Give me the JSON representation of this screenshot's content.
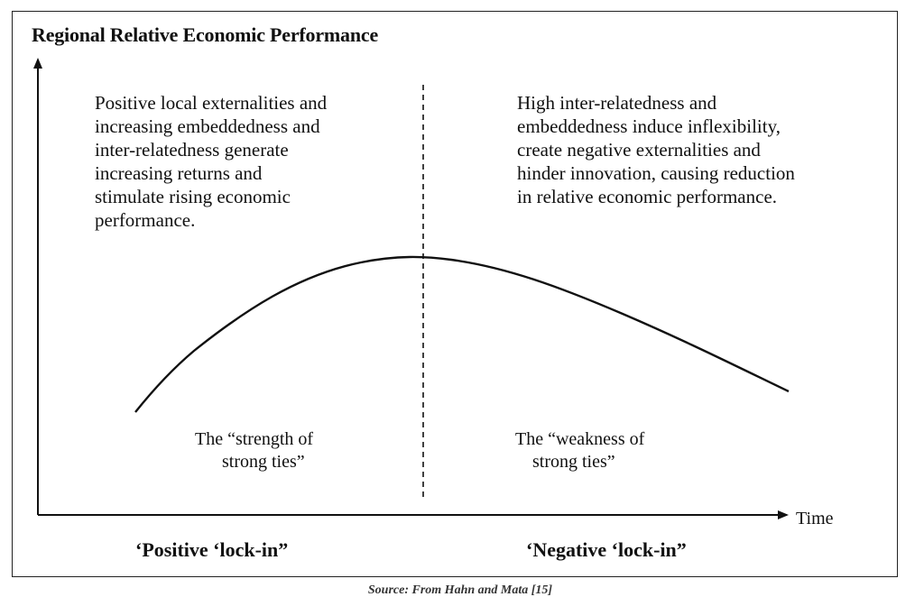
{
  "diagram": {
    "y_axis_title": "Regional Relative Economic Performance",
    "x_axis_title": "Time",
    "left_description": [
      "Positive local externalities and",
      "increasing embeddedness and",
      "inter-relatedness generate",
      "increasing returns and",
      "stimulate rising economic",
      "performance."
    ],
    "right_description": [
      "High inter-relatedness and",
      "embeddedness induce inflexibility,",
      "create negative externalities and",
      "hinder innovation, causing reduction",
      "in relative economic performance."
    ],
    "left_ties_label": [
      "The “strength of",
      "strong ties”"
    ],
    "right_ties_label": [
      "The “weakness of",
      "strong ties”"
    ],
    "left_lockin_label": "‘Positive ‘lock-in”",
    "right_lockin_label": "‘Negative ‘lock-in”",
    "source_caption": "Source: From Hahn and Mata [15]"
  }
}
